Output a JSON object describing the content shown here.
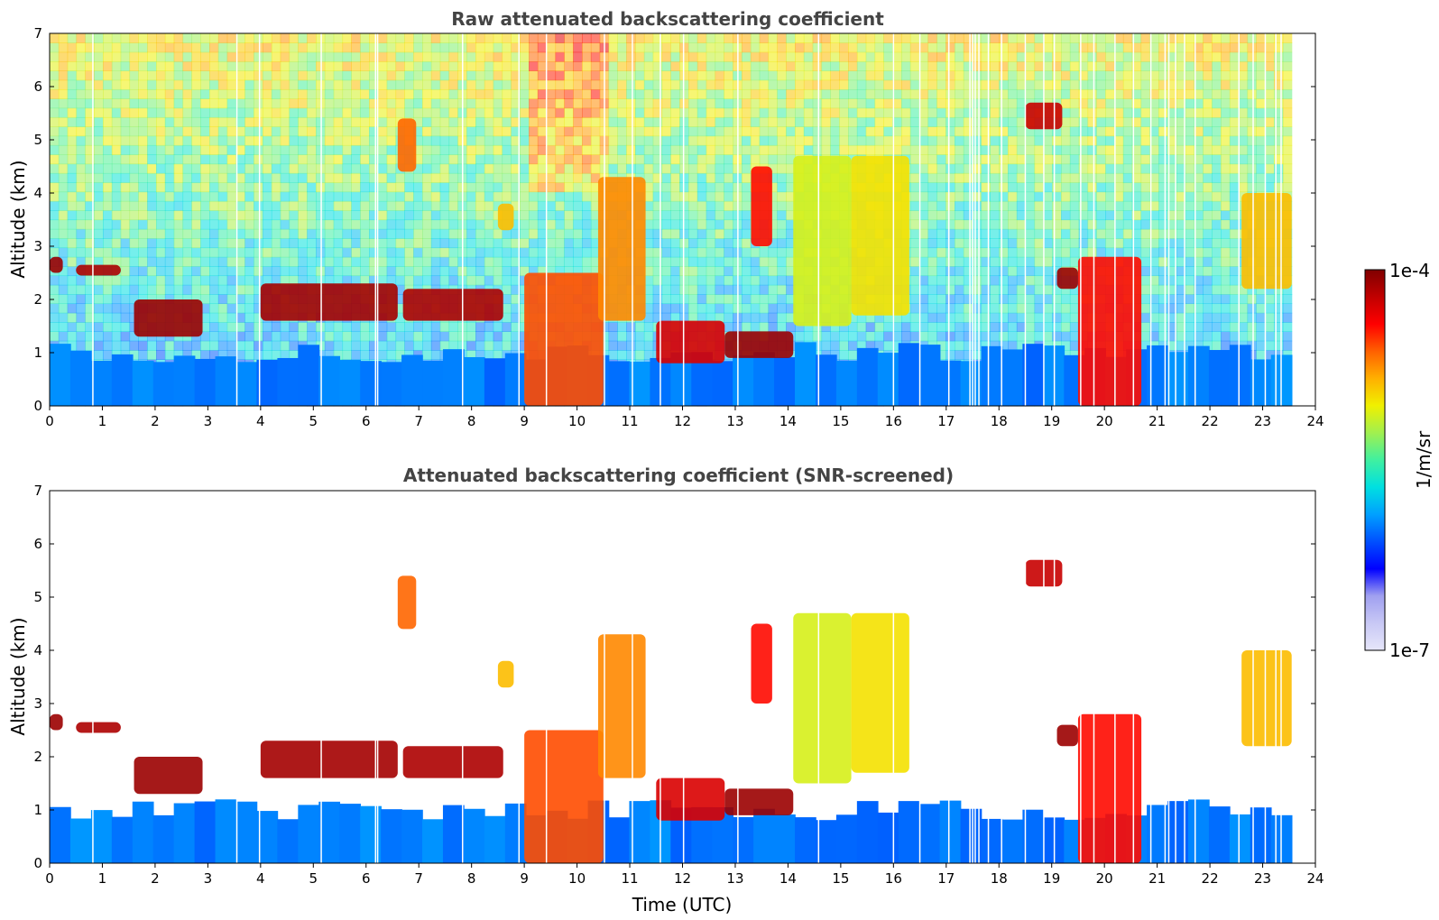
{
  "chart_data": [
    {
      "type": "heatmap",
      "id": "raw",
      "title": "Raw attenuated backscattering coefficient",
      "xlabel": "",
      "ylabel": "Altitude (km)",
      "xlim": [
        0,
        24
      ],
      "ylim": [
        0,
        7
      ],
      "x_ticks": [
        0,
        1,
        2,
        3,
        4,
        5,
        6,
        7,
        8,
        9,
        10,
        11,
        12,
        13,
        14,
        15,
        16,
        17,
        18,
        19,
        20,
        21,
        22,
        23,
        24
      ],
      "y_ticks": [
        0,
        1,
        2,
        3,
        4,
        5,
        6,
        7
      ],
      "data_end_time": 23.55,
      "colorscale": "jet",
      "noise_above": true,
      "blank_columns_time": [
        0.82,
        3.55,
        3.98,
        5.15,
        6.18,
        6.22,
        7.83,
        8.9,
        9.42,
        10.52,
        11.05,
        11.58,
        12.02,
        13.05,
        14.58,
        16.0,
        16.5,
        17.05,
        17.45,
        17.5,
        17.55,
        17.62,
        17.8,
        18.05,
        18.5,
        18.85,
        19.05,
        19.55,
        19.8,
        20.2,
        20.55,
        20.88,
        21.15,
        21.22,
        21.35,
        21.52,
        21.72,
        22.55,
        22.82,
        23.05,
        23.25,
        23.35
      ],
      "features": [
        {
          "kind": "low_layer",
          "t": [
            0.0,
            23.55
          ],
          "top_km": 1.0,
          "bottom_km": 0.0,
          "level": 0.3
        },
        {
          "kind": "cloud",
          "t": [
            0.0,
            0.25
          ],
          "alt": [
            2.5,
            2.8
          ],
          "level": 0.97
        },
        {
          "kind": "cloud",
          "t": [
            0.5,
            1.35
          ],
          "alt": [
            2.45,
            2.65
          ],
          "level": 0.95
        },
        {
          "kind": "cloud",
          "t": [
            1.6,
            2.9
          ],
          "alt": [
            1.3,
            2.0
          ],
          "level": 0.97
        },
        {
          "kind": "cloud",
          "t": [
            4.0,
            6.6
          ],
          "alt": [
            1.6,
            2.3
          ],
          "level": 0.96
        },
        {
          "kind": "cloud",
          "t": [
            6.7,
            8.6
          ],
          "alt": [
            1.6,
            2.2
          ],
          "level": 0.95
        },
        {
          "kind": "cloud",
          "t": [
            9.0,
            10.5
          ],
          "alt": [
            0.0,
            2.5
          ],
          "level": 0.8
        },
        {
          "kind": "cloud",
          "t": [
            10.4,
            11.3
          ],
          "alt": [
            1.6,
            4.3
          ],
          "level": 0.75
        },
        {
          "kind": "cloud",
          "t": [
            11.5,
            12.8
          ],
          "alt": [
            0.8,
            1.6
          ],
          "level": 0.9
        },
        {
          "kind": "cloud",
          "t": [
            12.8,
            14.1
          ],
          "alt": [
            0.9,
            1.4
          ],
          "level": 0.97
        },
        {
          "kind": "cloud",
          "t": [
            13.3,
            13.7
          ],
          "alt": [
            3.0,
            4.5
          ],
          "level": 0.85
        },
        {
          "kind": "cloud",
          "t": [
            14.1,
            15.2
          ],
          "alt": [
            1.5,
            4.7
          ],
          "level": 0.62
        },
        {
          "kind": "cloud",
          "t": [
            15.2,
            16.3
          ],
          "alt": [
            1.7,
            4.7
          ],
          "level": 0.66
        },
        {
          "kind": "cloud",
          "t": [
            19.5,
            20.7
          ],
          "alt": [
            0.0,
            2.8
          ],
          "level": 0.85
        },
        {
          "kind": "cloud",
          "t": [
            19.1,
            19.5
          ],
          "alt": [
            2.2,
            2.6
          ],
          "level": 0.97
        },
        {
          "kind": "cloud",
          "t": [
            18.5,
            19.2
          ],
          "alt": [
            5.2,
            5.7
          ],
          "level": 0.92
        },
        {
          "kind": "cloud",
          "t": [
            22.6,
            23.55
          ],
          "alt": [
            2.2,
            4.0
          ],
          "level": 0.7
        },
        {
          "kind": "cloud",
          "t": [
            6.6,
            6.95
          ],
          "alt": [
            4.4,
            5.4
          ],
          "level": 0.78
        },
        {
          "kind": "cloud",
          "t": [
            8.5,
            8.8
          ],
          "alt": [
            3.3,
            3.8
          ],
          "level": 0.7
        }
      ]
    },
    {
      "type": "heatmap",
      "id": "screened",
      "title": "Attenuated backscattering coefficient (SNR-screened)",
      "xlabel": "Time (UTC)",
      "ylabel": "Altitude (km)",
      "xlim": [
        0,
        24
      ],
      "ylim": [
        0,
        7
      ],
      "x_ticks": [
        0,
        1,
        2,
        3,
        4,
        5,
        6,
        7,
        8,
        9,
        10,
        11,
        12,
        13,
        14,
        15,
        16,
        17,
        18,
        19,
        20,
        21,
        22,
        23,
        24
      ],
      "y_ticks": [
        0,
        1,
        2,
        3,
        4,
        5,
        6,
        7
      ],
      "data_end_time": 23.55,
      "colorscale": "jet",
      "noise_above": false
    }
  ],
  "colorbar": {
    "label": "1/m/sr",
    "max_label": "1e-4",
    "min_label": "1e-7",
    "colors": [
      "#e6e6fa",
      "#c8c8f5",
      "#a0a0f0",
      "#0000ff",
      "#0050ff",
      "#00a0ff",
      "#00e0e0",
      "#40f0a0",
      "#a0f050",
      "#f0f000",
      "#ffb000",
      "#ff6000",
      "#ff0000",
      "#c00000",
      "#800000"
    ]
  }
}
